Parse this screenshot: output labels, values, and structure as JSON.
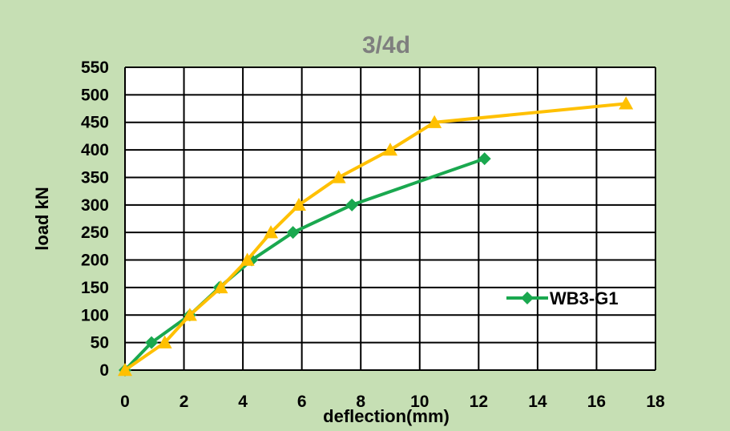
{
  "chart_data": {
    "type": "line",
    "title": "3/4d",
    "xlabel": "deflection(mm)",
    "ylabel": "load kN",
    "xlim": [
      0,
      18
    ],
    "ylim": [
      0,
      550
    ],
    "xticks": [
      0,
      2,
      4,
      6,
      8,
      10,
      12,
      14,
      16,
      18
    ],
    "yticks": [
      0,
      50,
      100,
      150,
      200,
      250,
      300,
      350,
      400,
      450,
      500,
      550
    ],
    "grid": true,
    "legend_position": "right",
    "background": "#c6dfb4",
    "series": [
      {
        "name": "WB3-G1",
        "color": "#1aa84f",
        "marker": "diamond",
        "x": [
          0,
          0.9,
          2.2,
          3.2,
          4.3,
          5.7,
          7.7,
          12.2
        ],
        "y": [
          0,
          50,
          100,
          150,
          200,
          250,
          300,
          384
        ]
      },
      {
        "name": "",
        "color": "#ffc000",
        "marker": "triangle",
        "x": [
          0,
          1.35,
          2.2,
          3.25,
          4.15,
          4.95,
          5.9,
          7.25,
          9.0,
          10.5,
          17.0
        ],
        "y": [
          0,
          50,
          100,
          150,
          200,
          250,
          300,
          350,
          400,
          450,
          484
        ]
      }
    ]
  }
}
